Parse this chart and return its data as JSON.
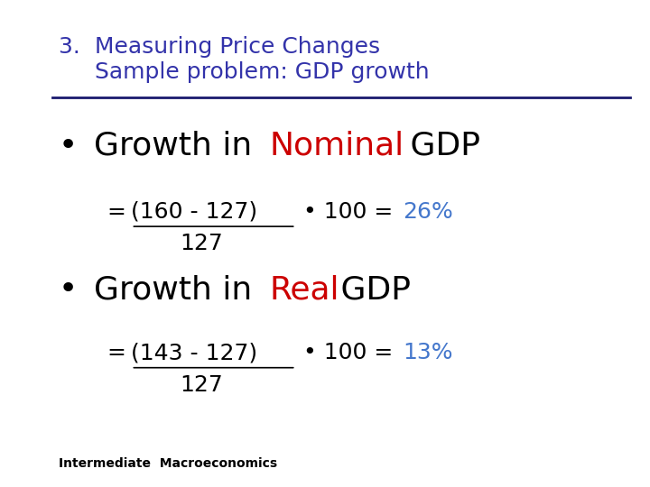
{
  "background_color": "#ffffff",
  "title_line1": "3.  Measuring Price Changes",
  "title_line2": "     Sample problem: GDP growth",
  "title_color": "#3333aa",
  "title_fontsize": 18,
  "separator_color": "#1a1a6e",
  "bullet1_highlight_color": "#cc0000",
  "bullet1_text_color": "#000000",
  "bullet1_fontsize": 26,
  "formula1_result_color": "#4477cc",
  "formula1_text_color": "#000000",
  "formula1_fontsize": 18,
  "bullet2_highlight_color": "#cc0000",
  "bullet2_text_color": "#000000",
  "bullet2_fontsize": 26,
  "formula2_result_color": "#4477cc",
  "formula2_text_color": "#000000",
  "formula2_fontsize": 18,
  "footer_text": "Intermediate  Macroeconomics",
  "footer_fontsize": 10,
  "footer_color": "#000000",
  "bullet_color": "#000000",
  "bullet_symbol": "•"
}
